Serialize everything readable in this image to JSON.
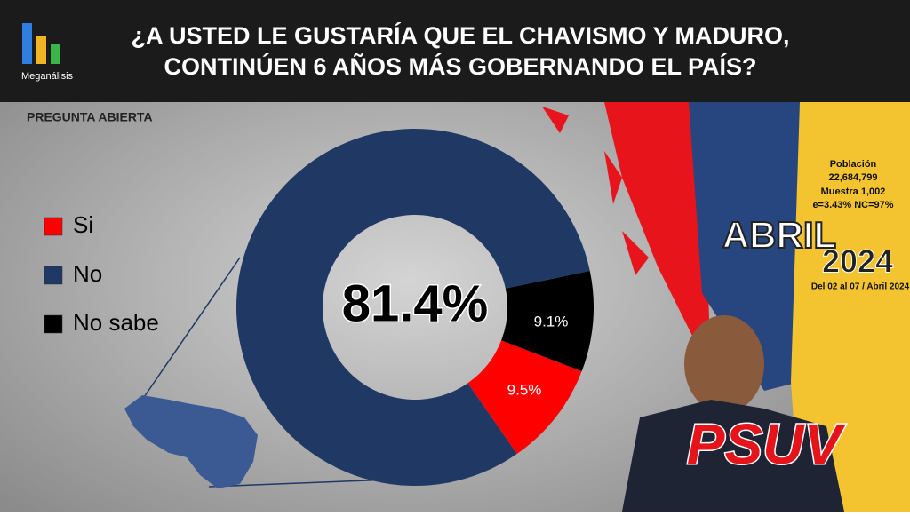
{
  "header": {
    "logo_text": "Meganálisis",
    "title_line1": "¿A USTED LE GUSTARÍA QUE EL CHAVISMO Y MADURO,",
    "title_line2": "CONTINÚEN 6 AÑOS MÁS GOBERNANDO EL PAÍS?"
  },
  "subtitle": "PREGUNTA ABIERTA",
  "info": {
    "population_label": "Población",
    "population": "22,684,799",
    "sample": "Muestra 1,002",
    "error": "e=3.43%  NC=97%",
    "month": "ABRIL",
    "year": "2024",
    "dates": "Del 02 al 07 / Abril 2024"
  },
  "party": "PSUV",
  "chart_data": {
    "type": "donut",
    "categories": [
      "Si",
      "No",
      "No sabe"
    ],
    "values": [
      9.5,
      81.4,
      9.1
    ],
    "value_labels": [
      "9.5%",
      "81.4%",
      "9.1%"
    ],
    "colors": [
      "#ff0000",
      "#203864",
      "#000000"
    ]
  }
}
